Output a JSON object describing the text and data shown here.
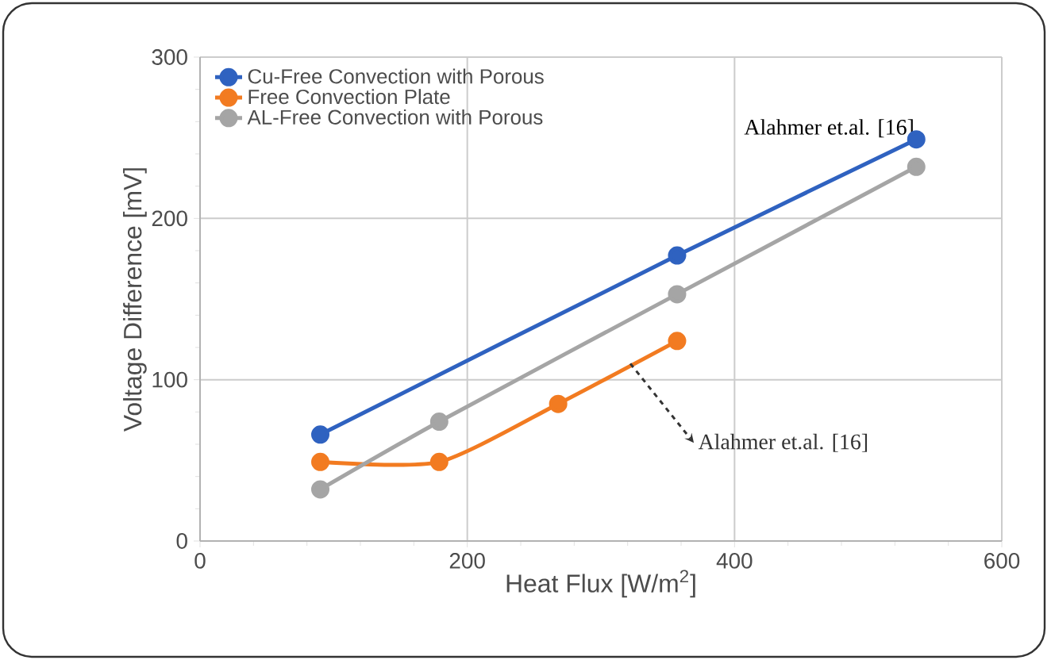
{
  "chart_data": {
    "type": "line",
    "xlabel": "Heat Flux [W/m$^{2}$]",
    "ylabel": "Voltage Difference  [mV]",
    "xlim": [
      0,
      600
    ],
    "xticks": [
      0,
      200,
      400,
      600
    ],
    "ylim": [
      0,
      300
    ],
    "yticks": [
      0,
      100,
      200,
      300
    ],
    "grid": true,
    "legend": "top left",
    "marker": "circle",
    "line_style": "solid",
    "series": [
      {
        "name": "Cu-Free Convection with Porous",
        "color": "#2f62c0",
        "x": [
          90,
          357,
          536
        ],
        "values": [
          66,
          177,
          249
        ]
      },
      {
        "name": "Free Convection Plate",
        "color": "#f27b21",
        "x": [
          90,
          179,
          268,
          357
        ],
        "values": [
          49,
          49,
          85,
          124
        ]
      },
      {
        "name": "AL-Free Convection with Porous",
        "color": "#a5a5a5",
        "x": [
          90,
          179,
          357,
          536
        ],
        "values": [
          32,
          74,
          153,
          232
        ]
      }
    ],
    "annotations": [
      {
        "text": "Alahmer et.al. [16]",
        "x": 536,
        "y": 249
      },
      {
        "text": "Alahmer et.al. [16]",
        "x": 322,
        "y": 110
      }
    ]
  }
}
